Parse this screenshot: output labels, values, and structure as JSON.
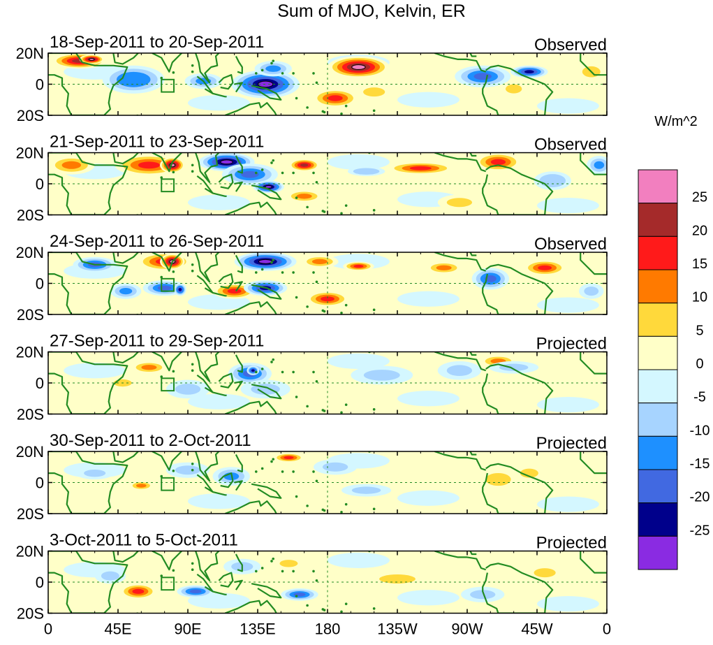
{
  "chart_data": {
    "type": "heatmap",
    "title": "Sum of MJO, Kelvin, ER",
    "colorbar": {
      "units": "W/m^2",
      "tick_labels": [
        "25",
        "20",
        "15",
        "10",
        "5",
        "0",
        "-5",
        "-10",
        "-15",
        "-20",
        "-25"
      ],
      "bins": [
        {
          "range": "> 25",
          "color": "#f27fbf"
        },
        {
          "range": "20 to 25",
          "color": "#a52a2a"
        },
        {
          "range": "15 to 20",
          "color": "#ff1a1a"
        },
        {
          "range": "10 to 15",
          "color": "#ff7a00"
        },
        {
          "range": "5 to 10",
          "color": "#ffd93b"
        },
        {
          "range": "0 to 5",
          "color": "#ffffc8"
        },
        {
          "range": "-5 to 0",
          "color": "#d4f7ff"
        },
        {
          "range": "-10 to -5",
          "color": "#a7d4ff"
        },
        {
          "range": "-15 to -10",
          "color": "#1e90ff"
        },
        {
          "range": "-20 to -15",
          "color": "#4169e1"
        },
        {
          "range": "-25 to -20",
          "color": "#00008b"
        },
        {
          "range": "< -25",
          "color": "#8a2be2"
        }
      ]
    },
    "x_axis": {
      "range_lon": [
        0,
        360
      ],
      "ticks": [
        {
          "lon": 0,
          "label": "0"
        },
        {
          "lon": 45,
          "label": "45E"
        },
        {
          "lon": 90,
          "label": "90E"
        },
        {
          "lon": 135,
          "label": "135E"
        },
        {
          "lon": 180,
          "label": "180"
        },
        {
          "lon": 225,
          "label": "135W"
        },
        {
          "lon": 270,
          "label": "90W"
        },
        {
          "lon": 315,
          "label": "45W"
        },
        {
          "lon": 360,
          "label": "0"
        }
      ]
    },
    "y_axis": {
      "range_lat": [
        -20,
        20
      ],
      "ticks": [
        {
          "lat": 20,
          "label": "20N"
        },
        {
          "lat": 0,
          "label": "0"
        },
        {
          "lat": -20,
          "label": "20S"
        }
      ]
    },
    "reference_lines": {
      "equator_lat": 0,
      "dateline_lon": 180
    },
    "box_marker": {
      "lon_min": 73,
      "lon_max": 81,
      "lat_min": -5,
      "lat_max": 3
    },
    "panels": [
      {
        "date_range": "18-Sep-2011 to 20-Sep-2011",
        "kind": "Observed",
        "anomalies": [
          {
            "lon": 20,
            "lat": 15,
            "rx": 18,
            "ry": 5,
            "value": 22
          },
          {
            "lon": 28,
            "lat": 16,
            "rx": 8,
            "ry": 3,
            "value": 27
          },
          {
            "lon": 55,
            "lat": 3,
            "rx": 20,
            "ry": 9,
            "value": -15
          },
          {
            "lon": 100,
            "lat": 2,
            "rx": 12,
            "ry": 5,
            "value": -14
          },
          {
            "lon": 140,
            "lat": 0,
            "rx": 22,
            "ry": 9,
            "value": -27
          },
          {
            "lon": 145,
            "lat": 10,
            "rx": 12,
            "ry": 5,
            "value": -12
          },
          {
            "lon": 200,
            "lat": 11,
            "rx": 20,
            "ry": 7,
            "value": 26
          },
          {
            "lon": 185,
            "lat": -9,
            "rx": 15,
            "ry": 6,
            "value": 18
          },
          {
            "lon": 210,
            "lat": -5,
            "rx": 12,
            "ry": 5,
            "value": 9
          },
          {
            "lon": 280,
            "lat": 5,
            "rx": 18,
            "ry": 7,
            "value": -17
          },
          {
            "lon": 310,
            "lat": 8,
            "rx": 12,
            "ry": 4,
            "value": -21
          },
          {
            "lon": 300,
            "lat": -3,
            "rx": 9,
            "ry": 5,
            "value": 8
          },
          {
            "lon": 350,
            "lat": 8,
            "rx": 10,
            "ry": 6,
            "value": 7
          }
        ]
      },
      {
        "date_range": "21-Sep-2011 to 23-Sep-2011",
        "kind": "Observed",
        "anomalies": [
          {
            "lon": 15,
            "lat": 12,
            "rx": 15,
            "ry": 6,
            "value": 12
          },
          {
            "lon": 65,
            "lat": 12,
            "rx": 22,
            "ry": 7,
            "value": 18
          },
          {
            "lon": 80,
            "lat": 12,
            "rx": 8,
            "ry": 5,
            "value": 27
          },
          {
            "lon": 115,
            "lat": 14,
            "rx": 18,
            "ry": 6,
            "value": -27
          },
          {
            "lon": 130,
            "lat": 6,
            "rx": 18,
            "ry": 7,
            "value": -18
          },
          {
            "lon": 142,
            "lat": -2,
            "rx": 10,
            "ry": 4,
            "value": -26
          },
          {
            "lon": 165,
            "lat": 12,
            "rx": 10,
            "ry": 4,
            "value": 22
          },
          {
            "lon": 165,
            "lat": -8,
            "rx": 12,
            "ry": 4,
            "value": 12
          },
          {
            "lon": 205,
            "lat": 8,
            "rx": 12,
            "ry": 3,
            "value": -10
          },
          {
            "lon": 240,
            "lat": 10,
            "rx": 22,
            "ry": 4,
            "value": 18
          },
          {
            "lon": 265,
            "lat": -12,
            "rx": 14,
            "ry": 5,
            "value": 8
          },
          {
            "lon": 290,
            "lat": 14,
            "rx": 15,
            "ry": 6,
            "value": 16
          },
          {
            "lon": 325,
            "lat": 2,
            "rx": 12,
            "ry": 6,
            "value": -10
          },
          {
            "lon": 355,
            "lat": 12,
            "rx": 8,
            "ry": 6,
            "value": -12
          }
        ]
      },
      {
        "date_range": "24-Sep-2011 to 26-Sep-2011",
        "kind": "Observed",
        "anomalies": [
          {
            "lon": 30,
            "lat": 12,
            "rx": 14,
            "ry": 5,
            "value": -16
          },
          {
            "lon": 75,
            "lat": 14,
            "rx": 18,
            "ry": 6,
            "value": 18
          },
          {
            "lon": 80,
            "lat": 14,
            "rx": 8,
            "ry": 5,
            "value": 27
          },
          {
            "lon": 75,
            "lat": -3,
            "rx": 14,
            "ry": 5,
            "value": -17
          },
          {
            "lon": 85,
            "lat": -4,
            "rx": 4,
            "ry": 4,
            "value": -22
          },
          {
            "lon": 50,
            "lat": -5,
            "rx": 10,
            "ry": 5,
            "value": -12
          },
          {
            "lon": 120,
            "lat": -5,
            "rx": 14,
            "ry": 5,
            "value": 15
          },
          {
            "lon": 140,
            "lat": 14,
            "rx": 20,
            "ry": 6,
            "value": -27
          },
          {
            "lon": 140,
            "lat": -3,
            "rx": 14,
            "ry": 5,
            "value": -22
          },
          {
            "lon": 180,
            "lat": -10,
            "rx": 14,
            "ry": 5,
            "value": 16
          },
          {
            "lon": 175,
            "lat": 14,
            "rx": 12,
            "ry": 4,
            "value": 12
          },
          {
            "lon": 200,
            "lat": 11,
            "rx": 10,
            "ry": 3,
            "value": 17
          },
          {
            "lon": 255,
            "lat": 10,
            "rx": 12,
            "ry": 4,
            "value": 14
          },
          {
            "lon": 285,
            "lat": 3,
            "rx": 12,
            "ry": 7,
            "value": -16
          },
          {
            "lon": 320,
            "lat": 10,
            "rx": 14,
            "ry": 5,
            "value": 15
          },
          {
            "lon": 350,
            "lat": -5,
            "rx": 8,
            "ry": 5,
            "value": -8
          }
        ]
      },
      {
        "date_range": "27-Sep-2011 to 29-Sep-2011",
        "kind": "Projected",
        "anomalies": [
          {
            "lon": 65,
            "lat": 10,
            "rx": 12,
            "ry": 4,
            "value": 12
          },
          {
            "lon": 48,
            "lat": 0,
            "rx": 10,
            "ry": 4,
            "value": 6
          },
          {
            "lon": 130,
            "lat": 6,
            "rx": 14,
            "ry": 7,
            "value": -16
          },
          {
            "lon": 132,
            "lat": 8,
            "rx": 4,
            "ry": 3,
            "value": -22
          },
          {
            "lon": 140,
            "lat": -4,
            "rx": 16,
            "ry": 6,
            "value": -9
          },
          {
            "lon": 90,
            "lat": -4,
            "rx": 14,
            "ry": 6,
            "value": -7
          },
          {
            "lon": 215,
            "lat": 5,
            "rx": 20,
            "ry": 6,
            "value": -7
          },
          {
            "lon": 265,
            "lat": 8,
            "rx": 14,
            "ry": 6,
            "value": -8
          },
          {
            "lon": 290,
            "lat": 14,
            "rx": 12,
            "ry": 4,
            "value": 14
          },
          {
            "lon": 300,
            "lat": 10,
            "rx": 16,
            "ry": 4,
            "value": -8
          }
        ]
      },
      {
        "date_range": "30-Sep-2011 to 2-Oct-2011",
        "kind": "Projected",
        "anomalies": [
          {
            "lon": 155,
            "lat": 16,
            "rx": 10,
            "ry": 3,
            "value": 16
          },
          {
            "lon": 60,
            "lat": -2,
            "rx": 8,
            "ry": 3,
            "value": 14
          },
          {
            "lon": 90,
            "lat": 8,
            "rx": 14,
            "ry": 5,
            "value": -7
          },
          {
            "lon": 118,
            "lat": 4,
            "rx": 12,
            "ry": 6,
            "value": -12
          },
          {
            "lon": 185,
            "lat": 10,
            "rx": 14,
            "ry": 5,
            "value": -7
          },
          {
            "lon": 205,
            "lat": -5,
            "rx": 16,
            "ry": 4,
            "value": -7
          },
          {
            "lon": 290,
            "lat": 2,
            "rx": 14,
            "ry": 7,
            "value": 7
          },
          {
            "lon": 310,
            "lat": 6,
            "rx": 10,
            "ry": 5,
            "value": 6
          },
          {
            "lon": 30,
            "lat": 6,
            "rx": 12,
            "ry": 4,
            "value": -7
          }
        ]
      },
      {
        "date_range": "3-Oct-2011 to 5-Oct-2011",
        "kind": "Projected",
        "anomalies": [
          {
            "lon": 58,
            "lat": -6,
            "rx": 12,
            "ry": 5,
            "value": 18
          },
          {
            "lon": 95,
            "lat": -6,
            "rx": 12,
            "ry": 4,
            "value": -16
          },
          {
            "lon": 162,
            "lat": -8,
            "rx": 12,
            "ry": 4,
            "value": -16
          },
          {
            "lon": 155,
            "lat": 12,
            "rx": 10,
            "ry": 4,
            "value": 8
          },
          {
            "lon": 125,
            "lat": 10,
            "rx": 12,
            "ry": 5,
            "value": -7
          },
          {
            "lon": 40,
            "lat": 4,
            "rx": 10,
            "ry": 5,
            "value": -7
          },
          {
            "lon": 225,
            "lat": 2,
            "rx": 20,
            "ry": 5,
            "value": 7
          },
          {
            "lon": 280,
            "lat": -8,
            "rx": 14,
            "ry": 5,
            "value": -7
          },
          {
            "lon": 320,
            "lat": 6,
            "rx": 12,
            "ry": 5,
            "value": 7
          }
        ]
      }
    ]
  }
}
